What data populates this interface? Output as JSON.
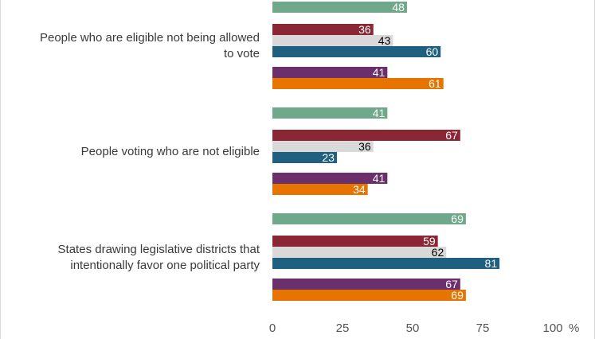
{
  "chart_data": {
    "type": "bar",
    "orientation": "horizontal",
    "categories": [
      [
        "People who are eligible not being allowed",
        "to vote"
      ],
      [
        "People voting who are not eligible"
      ],
      [
        "States drawing legislative districts that",
        "intentionally favor one political party"
      ]
    ],
    "series": [
      {
        "color": "#6fa88a",
        "label_color": "#ffffff",
        "values": [
          48,
          41,
          69
        ]
      },
      {
        "color": "#8b2635",
        "label_color": "#ffffff",
        "values": [
          36,
          67,
          59
        ]
      },
      {
        "color": "#d9d9d9",
        "label_color": "#000000",
        "values": [
          43,
          36,
          62
        ]
      },
      {
        "color": "#1f5f7f",
        "label_color": "#ffffff",
        "values": [
          60,
          23,
          81
        ]
      },
      {
        "color": "#6b2f6b",
        "label_color": "#ffffff",
        "values": [
          41,
          41,
          67
        ]
      },
      {
        "color": "#e87400",
        "label_color": "#ffffff",
        "values": [
          61,
          34,
          69
        ]
      }
    ],
    "xlim": [
      0,
      100
    ],
    "xticks": [
      0,
      25,
      50,
      75,
      100
    ],
    "xtick_labels": [
      "0",
      "25",
      "50",
      "75",
      "100"
    ],
    "x_unit": "%",
    "grid": false,
    "data_labels": true
  }
}
